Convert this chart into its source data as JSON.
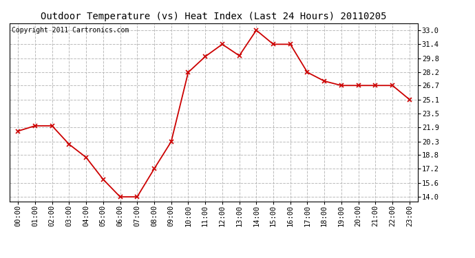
{
  "title": "Outdoor Temperature (vs) Heat Index (Last 24 Hours) 20110205",
  "copyright": "Copyright 2011 Cartronics.com",
  "x_labels": [
    "00:00",
    "01:00",
    "02:00",
    "03:00",
    "04:00",
    "05:00",
    "06:00",
    "07:00",
    "08:00",
    "09:00",
    "10:00",
    "11:00",
    "12:00",
    "13:00",
    "14:00",
    "15:00",
    "16:00",
    "17:00",
    "18:00",
    "19:00",
    "20:00",
    "21:00",
    "22:00",
    "23:00"
  ],
  "y_values": [
    21.5,
    22.1,
    22.1,
    20.0,
    18.5,
    16.0,
    14.0,
    14.0,
    17.2,
    20.3,
    28.2,
    30.0,
    31.4,
    30.1,
    33.0,
    31.4,
    31.4,
    28.2,
    27.2,
    26.7,
    26.7,
    26.7,
    26.7,
    25.1
  ],
  "y_ticks": [
    14.0,
    15.6,
    17.2,
    18.8,
    20.3,
    21.9,
    23.5,
    25.1,
    26.7,
    28.2,
    29.8,
    31.4,
    33.0
  ],
  "ylim": [
    13.5,
    33.8
  ],
  "line_color": "#cc0000",
  "marker": "x",
  "marker_size": 4,
  "marker_linewidth": 1.2,
  "line_width": 1.3,
  "grid_color": "#bbbbbb",
  "grid_style": "--",
  "background_color": "#ffffff",
  "title_fontsize": 10,
  "copyright_fontsize": 7,
  "tick_fontsize": 7.5,
  "fig_width": 6.9,
  "fig_height": 3.75
}
